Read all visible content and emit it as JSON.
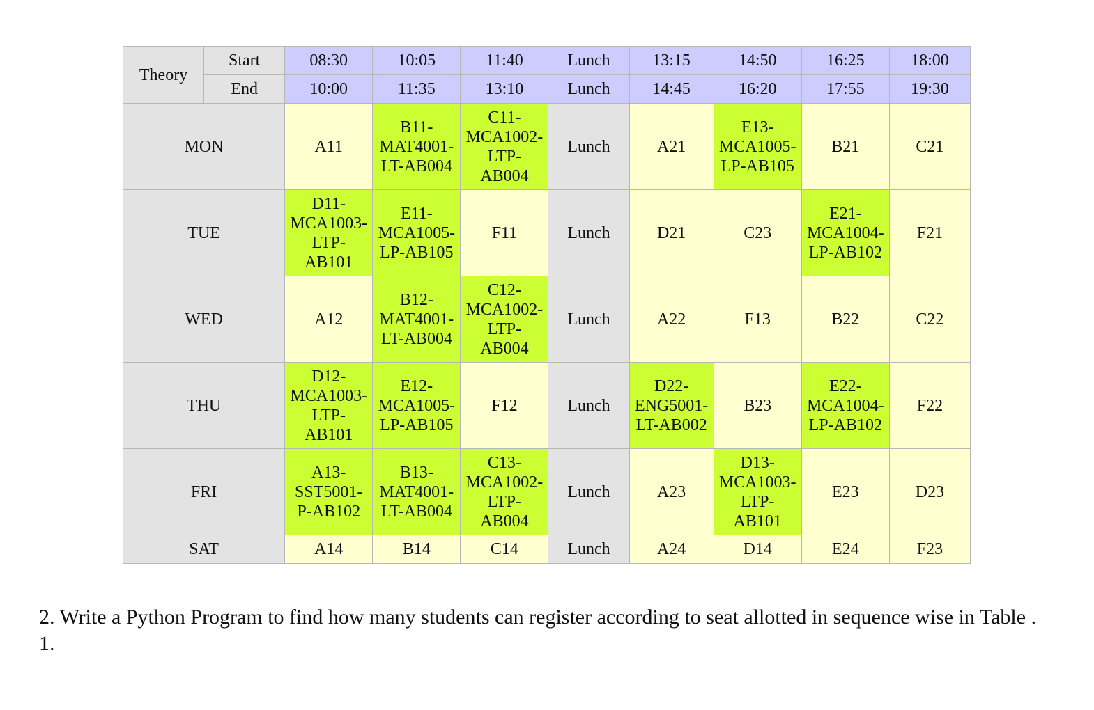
{
  "table": {
    "corner_label": "Theory",
    "start_label": "Start",
    "end_label": "End",
    "start_times": [
      "08:30",
      "10:05",
      "11:40",
      "Lunch",
      "13:15",
      "14:50",
      "16:25",
      "18:00"
    ],
    "end_times": [
      "10:00",
      "11:35",
      "13:10",
      "Lunch",
      "14:45",
      "16:20",
      "17:55",
      "19:30"
    ],
    "days": [
      {
        "day": "MON",
        "cells": [
          {
            "text": "A11",
            "booked": false
          },
          {
            "text": "B11-\nMAT4001-\nLT-AB004",
            "booked": true
          },
          {
            "text": "C11-\nMCA1002-\nLTP-\nAB004",
            "booked": true
          },
          {
            "text": "Lunch",
            "booked": false
          },
          {
            "text": "A21",
            "booked": false
          },
          {
            "text": "E13-\nMCA1005-\nLP-AB105",
            "booked": true
          },
          {
            "text": "B21",
            "booked": false
          },
          {
            "text": "C21",
            "booked": false
          }
        ]
      },
      {
        "day": "TUE",
        "cells": [
          {
            "text": "D11-\nMCA1003-\nLTP-\nAB101",
            "booked": true
          },
          {
            "text": "E11-\nMCA1005-\nLP-AB105",
            "booked": true
          },
          {
            "text": "F11",
            "booked": false
          },
          {
            "text": "Lunch",
            "booked": false
          },
          {
            "text": "D21",
            "booked": false
          },
          {
            "text": "C23",
            "booked": false
          },
          {
            "text": "E21-\nMCA1004-\nLP-AB102",
            "booked": true
          },
          {
            "text": "F21",
            "booked": false
          }
        ]
      },
      {
        "day": "WED",
        "cells": [
          {
            "text": "A12",
            "booked": false
          },
          {
            "text": "B12-\nMAT4001-\nLT-AB004",
            "booked": true
          },
          {
            "text": "C12-\nMCA1002-\nLTP-\nAB004",
            "booked": true
          },
          {
            "text": "Lunch",
            "booked": false
          },
          {
            "text": "A22",
            "booked": false
          },
          {
            "text": "F13",
            "booked": false
          },
          {
            "text": "B22",
            "booked": false
          },
          {
            "text": "C22",
            "booked": false
          }
        ]
      },
      {
        "day": "THU",
        "cells": [
          {
            "text": "D12-\nMCA1003-\nLTP-\nAB101",
            "booked": true
          },
          {
            "text": "E12-\nMCA1005-\nLP-AB105",
            "booked": true
          },
          {
            "text": "F12",
            "booked": false
          },
          {
            "text": "Lunch",
            "booked": false
          },
          {
            "text": "D22-\nENG5001-\nLT-AB002",
            "booked": true
          },
          {
            "text": "B23",
            "booked": false
          },
          {
            "text": "E22-\nMCA1004-\nLP-AB102",
            "booked": true
          },
          {
            "text": "F22",
            "booked": false
          }
        ]
      },
      {
        "day": "FRI",
        "cells": [
          {
            "text": "A13-\nSST5001-\nP-AB102",
            "booked": true
          },
          {
            "text": "B13-\nMAT4001-\nLT-AB004",
            "booked": true
          },
          {
            "text": "C13-\nMCA1002-\nLTP-\nAB004",
            "booked": true
          },
          {
            "text": "Lunch",
            "booked": false
          },
          {
            "text": "A23",
            "booked": false
          },
          {
            "text": "D13-\nMCA1003-\nLTP-\nAB101",
            "booked": true
          },
          {
            "text": "E23",
            "booked": false
          },
          {
            "text": "D23",
            "booked": false
          }
        ]
      },
      {
        "day": "SAT",
        "cells": [
          {
            "text": "A14",
            "booked": false
          },
          {
            "text": "B14",
            "booked": false
          },
          {
            "text": "C14",
            "booked": false
          },
          {
            "text": "Lunch",
            "booked": false
          },
          {
            "text": "A24",
            "booked": false
          },
          {
            "text": "D14",
            "booked": false
          },
          {
            "text": "E24",
            "booked": false
          },
          {
            "text": "F23",
            "booked": false
          }
        ]
      }
    ]
  },
  "question": "2. Write a Python Program to find how many students can register according to seat allotted in sequence wise in Table . 1.",
  "colors": {
    "header_gray": "#e3e3e3",
    "time_header": "#ccccff",
    "free_slot": "#ffffd0",
    "booked_slot": "#ccff33"
  }
}
